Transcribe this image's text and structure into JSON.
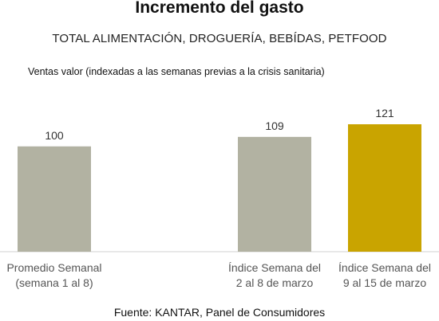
{
  "header": {
    "title": "Incremento del gasto",
    "subtitle": "TOTAL ALIMENTACIÓN, DROGUERÍA, BEBÍDAS, PETFOOD",
    "note": "Ventas valor (indexadas a las semanas previas a la crisis sanitaria)"
  },
  "footer": {
    "source": "Fuente: KANTAR, Panel de Consumidores"
  },
  "chart_data": {
    "type": "bar",
    "title": "Incremento del gasto",
    "subtitle": "TOTAL ALIMENTACIÓN, DROGUERÍA, BEBÍDAS, PETFOOD",
    "ylabel": "",
    "xlabel": "",
    "ylim": [
      0,
      121
    ],
    "grid": false,
    "legend": "none",
    "categories": [
      [
        "Promedio Semanal",
        "(semana 1 al 8)"
      ],
      [
        "",
        ""
      ],
      [
        "Índice Semana del",
        "2 al 8 de marzo"
      ],
      [
        "Índice Semana del",
        "9 al 15 de marzo"
      ]
    ],
    "values": [
      100,
      null,
      109,
      121
    ],
    "value_labels": [
      "100",
      "",
      "109",
      "121"
    ],
    "colors": [
      "#b2b2a2",
      "#b2b2a2",
      "#b2b2a2",
      "#c9a400"
    ],
    "baseline_color": "#d0d0d0"
  }
}
